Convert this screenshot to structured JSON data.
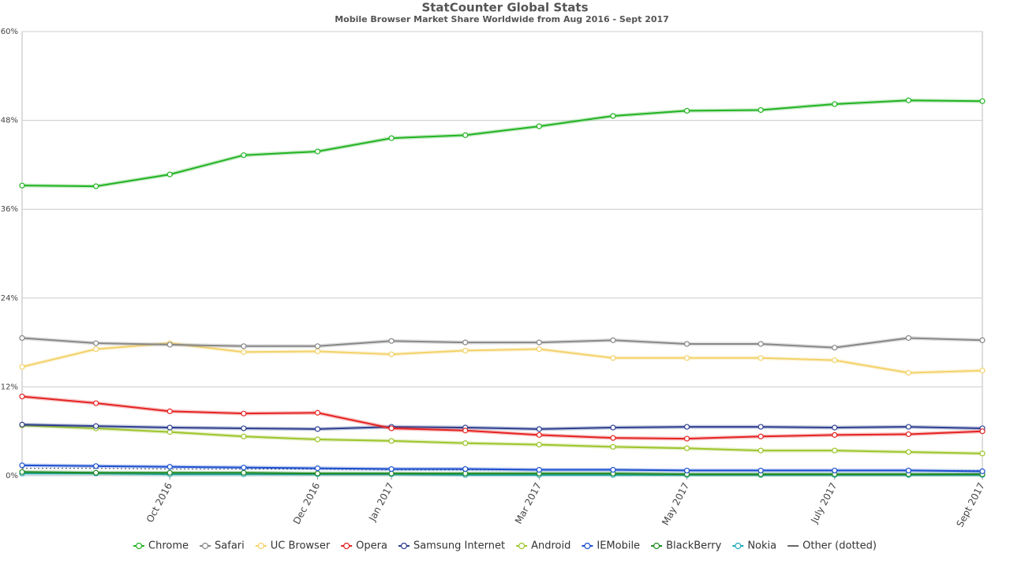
{
  "chart_data": {
    "type": "line",
    "title": "StatCounter Global Stats",
    "subtitle": "Mobile Browser Market Share Worldwide from Aug 2016 - Sept 2017",
    "categories": [
      null,
      null,
      "Oct 2016",
      null,
      "Dec 2016",
      "Jan 2017",
      null,
      "Mar 2017",
      null,
      "May 2017",
      null,
      "July 2017",
      null,
      "Sept 2017"
    ],
    "ylim": [
      0,
      60
    ],
    "yticks": [
      {
        "value": 0,
        "label": "0%"
      },
      {
        "value": 12,
        "label": "12%"
      },
      {
        "value": 24,
        "label": "24%"
      },
      {
        "value": 36,
        "label": "36%"
      },
      {
        "value": 48,
        "label": "48%"
      },
      {
        "value": 60,
        "label": "60%"
      }
    ],
    "grid": true,
    "legend": "bottom",
    "series": [
      {
        "name": "Chrome",
        "color": "#22b322",
        "values": [
          39.2,
          39.1,
          40.7,
          43.3,
          43.8,
          45.6,
          46.0,
          47.2,
          48.6,
          49.3,
          49.4,
          50.2,
          50.7,
          50.6
        ]
      },
      {
        "name": "Safari",
        "color": "#888888",
        "values": [
          18.6,
          17.9,
          17.7,
          17.5,
          17.5,
          18.2,
          18.0,
          18.0,
          18.3,
          17.8,
          17.8,
          17.3,
          18.6,
          18.3
        ]
      },
      {
        "name": "UC Browser",
        "color": "#f3d26a",
        "values": [
          14.7,
          17.1,
          17.9,
          16.7,
          16.8,
          16.4,
          16.9,
          17.1,
          15.9,
          15.9,
          15.9,
          15.6,
          13.9,
          14.2
        ]
      },
      {
        "name": "Opera",
        "color": "#e52222",
        "values": [
          10.7,
          9.8,
          8.7,
          8.4,
          8.5,
          6.4,
          6.1,
          5.5,
          5.1,
          5.0,
          5.3,
          5.5,
          5.6,
          6.0
        ]
      },
      {
        "name": "Samsung Internet",
        "color": "#2d3f8e",
        "values": [
          6.9,
          6.7,
          6.5,
          6.4,
          6.3,
          6.6,
          6.5,
          6.3,
          6.5,
          6.6,
          6.6,
          6.5,
          6.6,
          6.4
        ]
      },
      {
        "name": "Android",
        "color": "#9dc52b",
        "values": [
          6.8,
          6.4,
          5.9,
          5.3,
          4.9,
          4.7,
          4.4,
          4.2,
          3.9,
          3.7,
          3.4,
          3.4,
          3.2,
          3.0
        ]
      },
      {
        "name": "IEMobile",
        "color": "#1b4fcf",
        "values": [
          1.4,
          1.3,
          1.2,
          1.1,
          1.0,
          0.9,
          0.9,
          0.8,
          0.8,
          0.7,
          0.7,
          0.7,
          0.7,
          0.6
        ]
      },
      {
        "name": "BlackBerry",
        "color": "#238a23",
        "values": [
          0.5,
          0.4,
          0.4,
          0.4,
          0.3,
          0.3,
          0.3,
          0.3,
          0.3,
          0.2,
          0.2,
          0.2,
          0.2,
          0.2
        ]
      },
      {
        "name": "Nokia",
        "color": "#22a9b9",
        "values": [
          0.3,
          0.3,
          0.2,
          0.2,
          0.2,
          0.2,
          0.1,
          0.1,
          0.1,
          0.1,
          0.1,
          0.1,
          0.1,
          0.1
        ]
      },
      {
        "name": "Other (dotted)",
        "color": "#666666",
        "style": "dotted",
        "values": [
          1.0,
          1.0,
          0.9,
          0.9,
          0.9,
          0.8,
          0.8,
          0.8,
          0.8,
          0.7,
          0.7,
          0.7,
          0.7,
          0.7
        ]
      }
    ]
  }
}
